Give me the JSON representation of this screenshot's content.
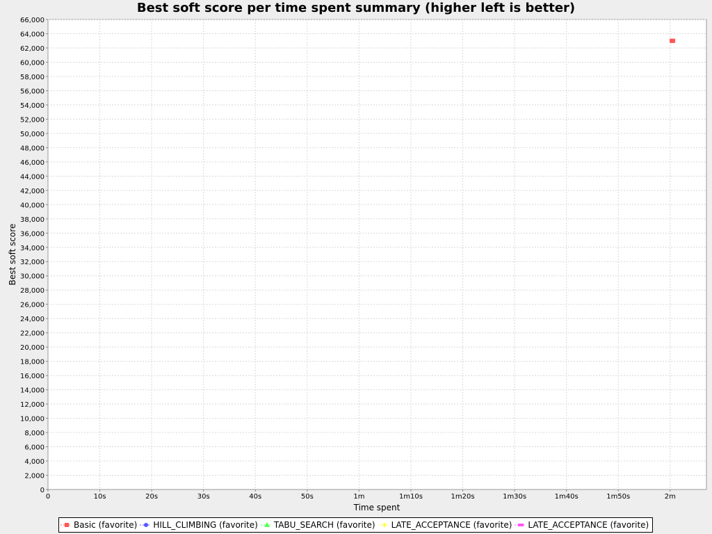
{
  "chart_data": {
    "type": "scatter",
    "title": "Best soft score per time spent summary (higher left is better)",
    "xlabel": "Time spent",
    "ylabel": "Best soft score",
    "xlim_seconds": [
      0,
      127
    ],
    "ylim": [
      0,
      66000
    ],
    "y_tick_step": 2000,
    "x_ticks": [
      {
        "value": 0,
        "label": "0"
      },
      {
        "value": 10,
        "label": "10s"
      },
      {
        "value": 20,
        "label": "20s"
      },
      {
        "value": 30,
        "label": "30s"
      },
      {
        "value": 40,
        "label": "40s"
      },
      {
        "value": 50,
        "label": "50s"
      },
      {
        "value": 60,
        "label": "1m"
      },
      {
        "value": 70,
        "label": "1m10s"
      },
      {
        "value": 80,
        "label": "1m20s"
      },
      {
        "value": 90,
        "label": "1m30s"
      },
      {
        "value": 100,
        "label": "1m40s"
      },
      {
        "value": 110,
        "label": "1m50s"
      },
      {
        "value": 120,
        "label": "2m"
      }
    ],
    "grid": true,
    "legend_position": "bottom",
    "series": [
      {
        "name": "Basic (favorite)",
        "color": "#ff5555",
        "marker": "square",
        "points": [
          {
            "x": 120.3,
            "y": 63000
          }
        ]
      },
      {
        "name": "HILL_CLIMBING (favorite)",
        "color": "#5555ff",
        "marker": "circle",
        "points": []
      },
      {
        "name": "TABU_SEARCH (favorite)",
        "color": "#55ff55",
        "marker": "triangle",
        "points": []
      },
      {
        "name": "LATE_ACCEPTANCE (favorite)",
        "color": "#ffff55",
        "marker": "diamond",
        "points": []
      },
      {
        "name": "LATE_ACCEPTANCE (favorite)",
        "color": "#ff55ff",
        "marker": "rect",
        "points": []
      }
    ]
  }
}
